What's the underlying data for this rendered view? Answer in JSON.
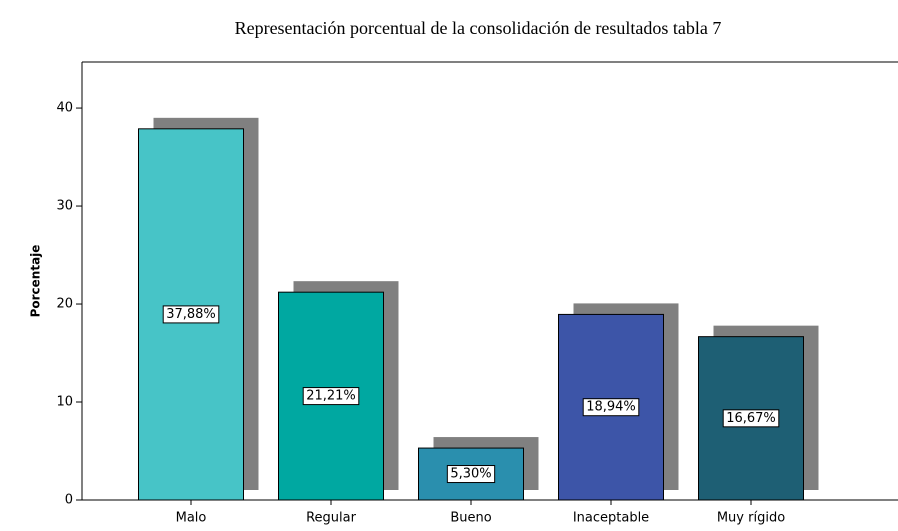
{
  "chart_data": {
    "type": "bar",
    "title": "Representación porcentual de la consolidación de resultados tabla 7",
    "y_label": "Porcentaje",
    "categories": [
      "Malo",
      "Regular",
      "Bueno",
      "Inaceptable",
      "Muy rígido"
    ],
    "values": [
      37.88,
      21.21,
      5.3,
      18.94,
      16.67
    ],
    "value_labels": [
      "37,88%",
      "21,21%",
      "5,30%",
      "18,94%",
      "16,67%"
    ],
    "colors": [
      "#47c4c7",
      "#00a8a1",
      "#2a8fae",
      "#3d55a8",
      "#1e5f74"
    ],
    "shadow_color": "#808080",
    "ylim": [
      0,
      44.7
    ],
    "yticks": [
      0,
      10,
      20,
      30,
      40
    ],
    "grid": false
  }
}
